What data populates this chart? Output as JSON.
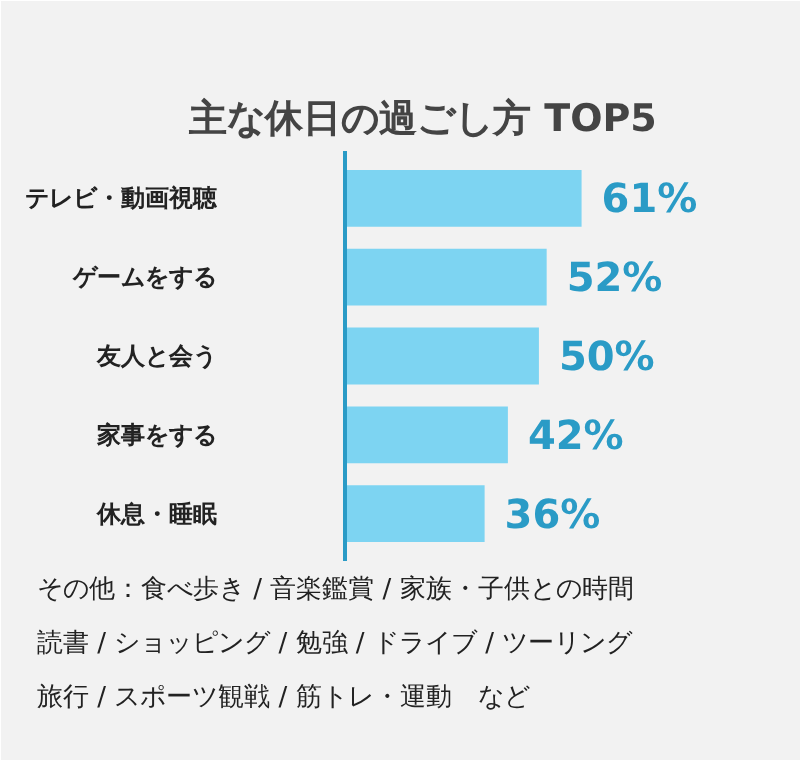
{
  "chart_data": {
    "type": "bar",
    "orientation": "horizontal",
    "title": "主な休日の過ごし方 TOP5",
    "categories": [
      "テレビ・動画視聴",
      "ゲームをする",
      "友人と会う",
      "家事をする",
      "休息・睡眠"
    ],
    "values": [
      61,
      52,
      50,
      42,
      36
    ],
    "color": "#7dd4f2",
    "value_labels": [
      "61%",
      "52%",
      "50%",
      "42%",
      "36%"
    ],
    "xlim": [
      0,
      115
    ],
    "tick_labels": "y",
    "grid": false,
    "annotations": [
      "その他：食べ歩き / 音楽鑑賞 / 家族・子供との時間",
      "読書 / ショッピング / 勉強 / ドライブ / ツーリング",
      "旅行 / スポーツ観戦 / 筋トレ・運動　など"
    ]
  }
}
